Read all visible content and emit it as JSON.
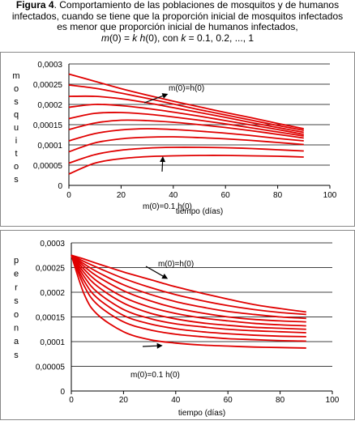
{
  "caption": {
    "fig_label": "Figura 4",
    "line1_rest": ". Comportamiento de las poblaciones de mosquitos y de humanos",
    "line2": "infectados, cuando se tiene que la proporción inicial de mosquitos infectados",
    "line3": "es menor que proporción inicial de humanos infectados,",
    "line4": {
      "a_m": "m",
      "a_rest": "(0) = ",
      "k1": "k",
      "sp": " ",
      "h": "h",
      "b_rest": "(0), con  ",
      "k2": "k",
      "c_rest": " = 0.1, 0.2, ..., 1"
    }
  },
  "colors": {
    "line": "#e00000",
    "grid": "#000000",
    "frame": "#888888"
  },
  "chart_data": [
    {
      "type": "line",
      "xlabel": "tiempo  (días)",
      "ylabel": "mosquitos",
      "xlim": [
        0,
        100
      ],
      "ylim": [
        0,
        0.0003
      ],
      "xticks": [
        "0",
        "20",
        "40",
        "60",
        "80",
        "100"
      ],
      "yticks": [
        "0",
        "0,00005",
        "0,0001",
        "0,00015",
        "0,0002",
        "0,00025",
        "0,0003"
      ],
      "grid": "horizontal",
      "annotations": [
        {
          "text": "m(0)=h(0)",
          "arrow_to": [
            38,
            0.000226
          ]
        },
        {
          "text": "m(0)=0.1  h(0)",
          "arrow_to": [
            36,
            7.2e-05
          ]
        }
      ],
      "x": [
        0,
        10,
        20,
        30,
        40,
        50,
        60,
        70,
        80,
        90
      ],
      "series": [
        {
          "values": [
            0.000275,
            0.000257,
            0.000239,
            0.000223,
            0.000208,
            0.000194,
            0.00018,
            0.000167,
            0.000153,
            0.00014
          ]
        },
        {
          "values": [
            0.000248,
            0.00024,
            0.000228,
            0.000215,
            0.000201,
            0.000187,
            0.000174,
            0.000161,
            0.000148,
            0.000136
          ]
        },
        {
          "values": [
            0.00022,
            0.00022,
            0.000214,
            0.000204,
            0.000192,
            0.00018,
            0.000168,
            0.000155,
            0.000143,
            0.000131
          ]
        },
        {
          "values": [
            0.000193,
            0.0002,
            0.000197,
            0.00019,
            0.000181,
            0.000171,
            0.00016,
            0.000149,
            0.000138,
            0.000126
          ]
        },
        {
          "values": [
            0.000165,
            0.000178,
            0.00018,
            0.000176,
            0.000169,
            0.000161,
            0.000152,
            0.000142,
            0.000132,
            0.000122
          ]
        },
        {
          "values": [
            0.000138,
            0.000154,
            0.000161,
            0.00016,
            0.000156,
            0.00015,
            0.000143,
            0.000135,
            0.000126,
            0.000117
          ]
        },
        {
          "values": [
            0.00011,
            0.000128,
            0.000137,
            0.00014,
            0.000138,
            0.000134,
            0.000129,
            0.000123,
            0.000116,
            0.00011
          ]
        },
        {
          "values": [
            8.3e-05,
            0.000105,
            0.000115,
            0.000119,
            0.00012,
            0.000118,
            0.000115,
            0.000111,
            0.000106,
            0.000101
          ]
        },
        {
          "values": [
            5.5e-05,
            7.6e-05,
            8.7e-05,
            9.2e-05,
            9.4e-05,
            9.4e-05,
            9.3e-05,
            9.1e-05,
            8.8e-05,
            8.5e-05
          ]
        },
        {
          "values": [
            2.8e-05,
            5.5e-05,
            6.6e-05,
            7.1e-05,
            7.3e-05,
            7.4e-05,
            7.4e-05,
            7.3e-05,
            7.2e-05,
            7e-05
          ]
        }
      ]
    },
    {
      "type": "line",
      "xlabel": "tiempo  (días)",
      "ylabel": "personas",
      "xlim": [
        0,
        100
      ],
      "ylim": [
        0,
        0.0003
      ],
      "xticks": [
        "0",
        "20",
        "40",
        "60",
        "80",
        "100"
      ],
      "yticks": [
        "0",
        "0,00005",
        "0,0001",
        "0,00015",
        "0,0002",
        "0,00025",
        "0,0003"
      ],
      "grid": "horizontal",
      "annotations": [
        {
          "text": "m(0)=h(0)",
          "arrow_to": [
            37,
            0.000227
          ]
        },
        {
          "text": "m(0)=0.1  h(0)",
          "arrow_to": [
            35,
            9.2e-05
          ]
        }
      ],
      "x": [
        0,
        5,
        10,
        20,
        30,
        40,
        50,
        60,
        70,
        80,
        90
      ],
      "series": [
        {
          "values": [
            0.000275,
            0.000267,
            0.000258,
            0.000241,
            0.000226,
            0.000211,
            0.000198,
            0.000186,
            0.000175,
            0.000167,
            0.00016
          ]
        },
        {
          "values": [
            0.000275,
            0.000262,
            0.00025,
            0.000228,
            0.00021,
            0.000195,
            0.000183,
            0.000173,
            0.000165,
            0.000159,
            0.000155
          ]
        },
        {
          "values": [
            0.000275,
            0.000257,
            0.000241,
            0.000215,
            0.000196,
            0.000181,
            0.00017,
            0.000161,
            0.000155,
            0.00015,
            0.000147
          ]
        },
        {
          "values": [
            0.000275,
            0.000252,
            0.000232,
            0.000203,
            0.000183,
            0.000168,
            0.000158,
            0.00015,
            0.000145,
            0.000142,
            0.00014
          ]
        },
        {
          "values": [
            0.000275,
            0.000246,
            0.000222,
            0.00019,
            0.00017,
            0.000157,
            0.000148,
            0.000142,
            0.000137,
            0.000134,
            0.000132
          ]
        },
        {
          "values": [
            0.000275,
            0.000239,
            0.000212,
            0.000178,
            0.000158,
            0.000146,
            0.000138,
            0.000133,
            0.000129,
            0.000127,
            0.000125
          ]
        },
        {
          "values": [
            0.000275,
            0.000231,
            0.0002,
            0.000165,
            0.000147,
            0.000136,
            0.00013,
            0.000125,
            0.000122,
            0.00012,
            0.000118
          ]
        },
        {
          "values": [
            0.000275,
            0.000222,
            0.000188,
            0.000153,
            0.000136,
            0.000126,
            0.00012,
            0.000116,
            0.000113,
            0.000111,
            0.00011
          ]
        },
        {
          "values": [
            0.000275,
            0.000212,
            0.000175,
            0.00014,
            0.000124,
            0.000115,
            0.00011,
            0.000106,
            0.000104,
            0.000102,
            0.000101
          ]
        },
        {
          "values": [
            0.000275,
            0.000195,
            0.000155,
            0.00012,
            0.000104,
            9.7e-05,
            9.3e-05,
            9.1e-05,
            8.9e-05,
            8.8e-05,
            8.7e-05
          ]
        }
      ]
    }
  ]
}
